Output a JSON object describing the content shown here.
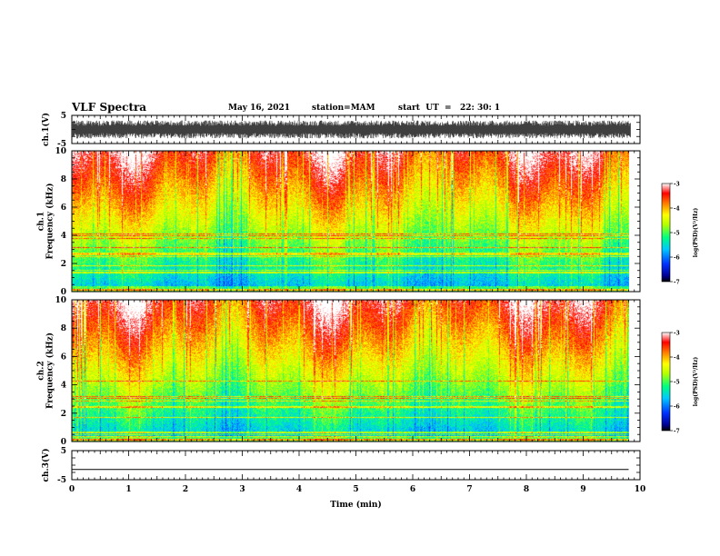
{
  "header": {
    "title": "VLF Spectra",
    "date": "May 16, 2021",
    "station": "station=MAM",
    "start": "start  UT  =   22: 30: 1"
  },
  "chart_data": [
    {
      "type": "line",
      "panel": "ch1-waveform",
      "ylabel": "ch.1(V)",
      "ylim": [
        -5,
        5
      ],
      "yticks": [
        -5,
        5
      ],
      "xlim": [
        0,
        10
      ],
      "description_values": {
        "min_level": -3.2,
        "max_level": 3.2
      }
    },
    {
      "type": "heatmap",
      "panel": "ch1-spectrogram",
      "ylabel_lines": [
        "ch.1",
        "Frequency (kHz)"
      ],
      "ylim": [
        0,
        10
      ],
      "yticks": [
        0,
        2,
        4,
        6,
        8,
        10
      ],
      "xlim": [
        0,
        9.8
      ],
      "colorbar": {
        "label": "log(PSD)(V²/Hz)",
        "ticks": [
          -7,
          -6,
          -5,
          -4,
          -3
        ],
        "range": [
          -7,
          -3
        ]
      }
    },
    {
      "type": "heatmap",
      "panel": "ch2-spectrogram",
      "ylabel_lines": [
        "ch.2",
        "Frequency (kHz)"
      ],
      "ylim": [
        0,
        10
      ],
      "yticks": [
        0,
        2,
        4,
        6,
        8,
        10
      ],
      "xlim": [
        0,
        9.8
      ],
      "colorbar": {
        "label": "log(PSD)(V²/Hz)",
        "ticks": [
          -7,
          -6,
          -5,
          -4,
          -3
        ],
        "range": [
          -7,
          -3
        ]
      }
    },
    {
      "type": "line",
      "panel": "ch3-waveform",
      "ylabel": "ch.3(V)",
      "ylim": [
        -5,
        5
      ],
      "yticks": [
        -5,
        5
      ],
      "x": [
        0,
        9.8
      ],
      "y": [
        -1.5,
        -1.5
      ]
    }
  ],
  "xaxis": {
    "label": "Time (min)",
    "ticks": [
      "0",
      "1",
      "2",
      "3",
      "4",
      "5",
      "6",
      "7",
      "8",
      "9",
      "10"
    ],
    "range": [
      0,
      10
    ]
  },
  "colors": {
    "axis": "#000000",
    "waveform": "#000000",
    "colormap": [
      "#000000",
      "#0000c8",
      "#0050ff",
      "#00c8ff",
      "#00ff80",
      "#80ff00",
      "#ffff00",
      "#ff9600",
      "#ff1e00",
      "#ffffff"
    ]
  }
}
